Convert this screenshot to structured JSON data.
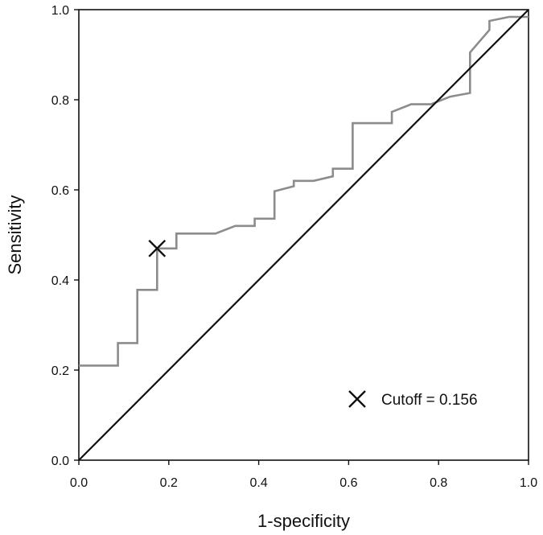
{
  "chart_data": {
    "type": "line",
    "title": "",
    "xlabel": "1-specificity",
    "ylabel": "Sensitivity",
    "xlim": [
      0.0,
      1.0
    ],
    "ylim": [
      0.0,
      1.0
    ],
    "xticks": [
      "0.0",
      "0.2",
      "0.4",
      "0.6",
      "0.8",
      "1.0"
    ],
    "yticks": [
      "0.0",
      "0.2",
      "0.4",
      "0.6",
      "0.8",
      "1.0"
    ],
    "grid": false,
    "legend": {
      "placement": "bottom-right"
    },
    "series": [
      {
        "color": "#8c8c8c",
        "x": [
          0.0,
          0.087,
          0.087,
          0.13,
          0.13,
          0.174,
          0.174,
          0.217,
          0.217,
          0.304,
          0.348,
          0.391,
          0.391,
          0.435,
          0.435,
          0.478,
          0.478,
          0.522,
          0.565,
          0.565,
          0.609,
          0.609,
          0.696,
          0.696,
          0.739,
          0.783,
          0.826,
          0.87,
          0.87,
          0.913,
          0.913,
          0.957,
          1.0
        ],
        "y": [
          0.21,
          0.21,
          0.26,
          0.26,
          0.378,
          0.378,
          0.47,
          0.47,
          0.503,
          0.503,
          0.52,
          0.52,
          0.536,
          0.536,
          0.597,
          0.608,
          0.62,
          0.62,
          0.63,
          0.647,
          0.647,
          0.748,
          0.748,
          0.773,
          0.79,
          0.79,
          0.807,
          0.815,
          0.905,
          0.955,
          0.975,
          0.984,
          0.984
        ]
      },
      {
        "color": "#111111",
        "x": [
          0.0,
          1.0
        ],
        "y": [
          0.0,
          1.0
        ]
      }
    ],
    "annotations": [
      {
        "marker": "x",
        "x": 0.174,
        "y": 0.47,
        "label": "Cutoff = 0.156"
      }
    ]
  }
}
